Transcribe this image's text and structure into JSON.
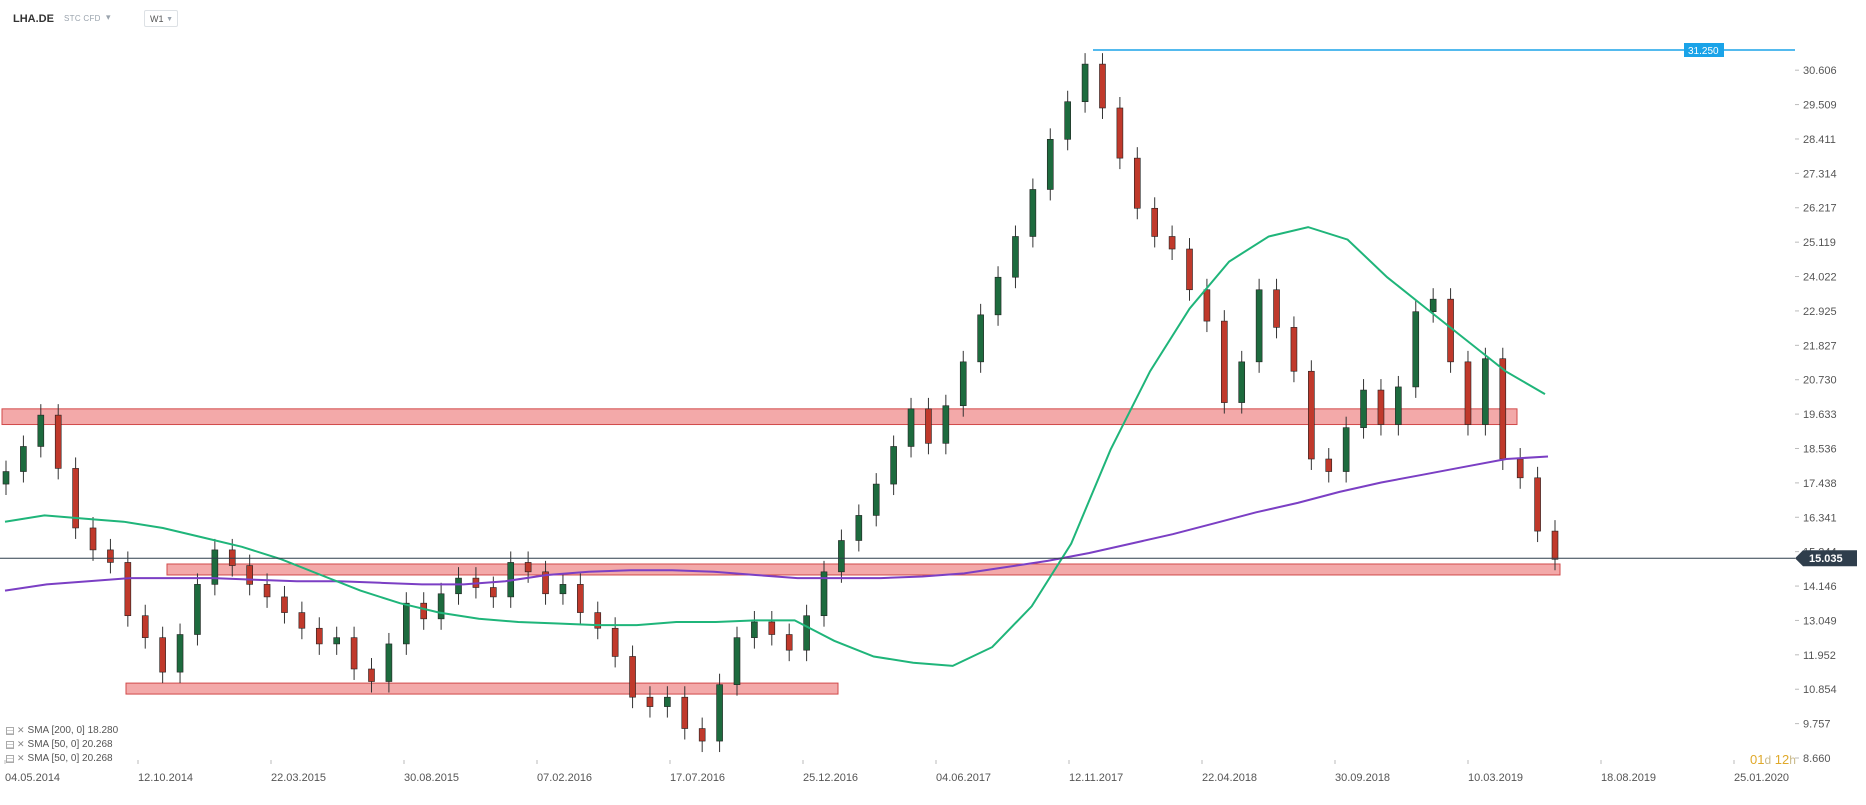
{
  "toolbar": {
    "symbol": "LHA.DE",
    "instrument_type": "STC CFD",
    "timeframe": "W1"
  },
  "legend": [
    {
      "label": "SMA [200, 0] 18.280",
      "color": "#7b3fc4"
    },
    {
      "label": "SMA [50, 0] 20.268",
      "color": "#1fb57a"
    },
    {
      "label": "SMA [50, 0] 20.268",
      "color": "#1fb57a"
    }
  ],
  "countdown": {
    "days": "01",
    "day_unit": "d",
    "hours": "12",
    "hour_unit": "h"
  },
  "chart_data": {
    "type": "candlestick",
    "title": "",
    "price_axis_ticks": [
      "30.606",
      "29.509",
      "28.411",
      "27.314",
      "26.217",
      "25.119",
      "24.022",
      "22.925",
      "21.827",
      "20.730",
      "19.633",
      "18.536",
      "17.438",
      "16.341",
      "15.244",
      "14.146",
      "13.049",
      "11.952",
      "10.854",
      "9.757",
      "8.660"
    ],
    "date_axis_ticks": [
      "04.05.2014",
      "12.10.2014",
      "22.03.2015",
      "30.08.2015",
      "07.02.2016",
      "17.07.2016",
      "25.12.2016",
      "04.06.2017",
      "12.11.2017",
      "22.04.2018",
      "30.09.2018",
      "10.03.2019",
      "18.08.2019",
      "25.01.2020"
    ],
    "ylim": [
      8.66,
      31.25
    ],
    "current_price": {
      "label": "15.035",
      "value": 15.035
    },
    "high_line": {
      "label": "31.250",
      "value": 31.25
    },
    "zones": [
      {
        "y_low": 19.3,
        "y_high": 19.8
      },
      {
        "y_low": 14.5,
        "y_high": 14.85
      },
      {
        "y_low": 10.7,
        "y_high": 11.05
      }
    ],
    "colors": {
      "up": "#1d6b3e",
      "down": "#c0392b",
      "zone": "#f19a9a",
      "sma200": "#7b3fc4",
      "sma50": "#1fb57a",
      "high_line": "#1aa3e8",
      "price_line": "#2f3e4c"
    },
    "series": [
      {
        "name": "SMA [200, 0] 18.280",
        "type": "line",
        "y": [
          14.0,
          14.2,
          14.3,
          14.4,
          14.4,
          14.4,
          14.35,
          14.3,
          14.3,
          14.25,
          14.2,
          14.2,
          14.3,
          14.5,
          14.6,
          14.65,
          14.65,
          14.6,
          14.5,
          14.4,
          14.4,
          14.4,
          14.45,
          14.55,
          14.75,
          14.95,
          15.2,
          15.5,
          15.8,
          16.15,
          16.5,
          16.8,
          17.15,
          17.45,
          17.7,
          17.95,
          18.2,
          18.28
        ]
      },
      {
        "name": "SMA [50, 0] 20.268",
        "type": "line",
        "y": [
          16.2,
          16.4,
          16.3,
          16.2,
          16.0,
          15.7,
          15.4,
          15.0,
          14.5,
          14.0,
          13.6,
          13.3,
          13.1,
          13.0,
          12.95,
          12.9,
          12.9,
          13.0,
          13.0,
          13.05,
          13.05,
          12.4,
          11.9,
          11.7,
          11.6,
          12.2,
          13.5,
          15.5,
          18.5,
          21.0,
          23.0,
          24.5,
          25.3,
          25.6,
          25.2,
          24.0,
          23.0,
          22.0,
          21.0,
          20.27
        ]
      },
      {
        "name": "LHA.DE",
        "type": "candlestick",
        "close": [
          17.8,
          18.6,
          19.6,
          17.9,
          16.0,
          15.3,
          14.9,
          13.2,
          12.5,
          11.4,
          12.6,
          14.2,
          15.3,
          14.8,
          14.2,
          13.8,
          13.3,
          12.8,
          12.3,
          12.5,
          11.5,
          11.1,
          12.3,
          13.6,
          13.1,
          13.9,
          14.4,
          14.1,
          13.8,
          14.9,
          14.6,
          13.9,
          14.2,
          13.3,
          12.8,
          11.9,
          10.6,
          10.3,
          10.6,
          9.6,
          9.2,
          11.0,
          12.5,
          13.0,
          12.6,
          12.1,
          13.2,
          14.6,
          15.6,
          16.4,
          17.4,
          18.6,
          19.8,
          18.7,
          19.9,
          21.3,
          22.8,
          24.0,
          25.3,
          26.8,
          28.4,
          29.6,
          30.8,
          29.4,
          27.8,
          26.2,
          25.3,
          24.9,
          23.6,
          22.6,
          20.0,
          21.3,
          23.6,
          22.4,
          21.0,
          18.2,
          17.8,
          19.2,
          20.4,
          19.3,
          20.5,
          22.9,
          23.3,
          21.3,
          19.3,
          21.4,
          18.2,
          17.6,
          15.9,
          15.0
        ]
      }
    ]
  }
}
